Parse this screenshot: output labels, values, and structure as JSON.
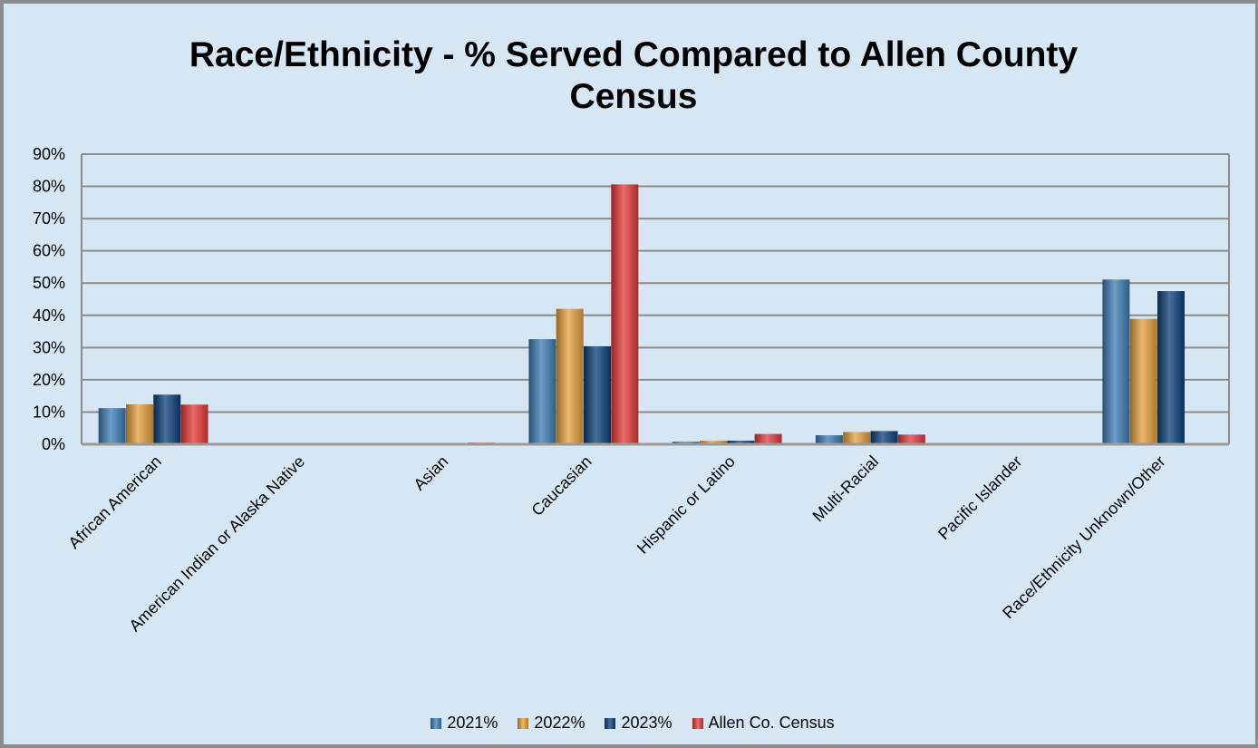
{
  "chart_data": {
    "type": "bar",
    "title": "Race/Ethnicity - % Served Compared to Allen County Census",
    "categories": [
      "African American",
      "American Indian or Alaska Native",
      "Asian",
      "Caucasian",
      "Hispanic or Latino",
      "Multi-Racial",
      "Pacific Islander",
      "Race/Ethnicity Unknown/Other"
    ],
    "series": [
      {
        "name": "2021%",
        "color": "#3d7cb6",
        "values": [
          11.2,
          0,
          0,
          32.6,
          0.8,
          2.8,
          0,
          51.1
        ]
      },
      {
        "name": "2022%",
        "color": "#e5a03c",
        "values": [
          12.4,
          0,
          0.1,
          42.0,
          1.1,
          3.8,
          0,
          38.9
        ]
      },
      {
        "name": "2023%",
        "color": "#0b3f7a",
        "values": [
          15.4,
          0,
          0.1,
          30.4,
          1.1,
          4.1,
          0,
          47.5
        ]
      },
      {
        "name": "Allen Co. Census",
        "color": "#e63a35",
        "values": [
          12.3,
          0.2,
          0.5,
          80.6,
          3.2,
          3.0,
          0,
          0
        ]
      }
    ],
    "yticks": [
      "0%",
      "10%",
      "20%",
      "30%",
      "40%",
      "50%",
      "60%",
      "70%",
      "80%",
      "90%"
    ],
    "ylim": [
      0,
      90
    ],
    "grid": true,
    "legend_position": "bottom"
  }
}
